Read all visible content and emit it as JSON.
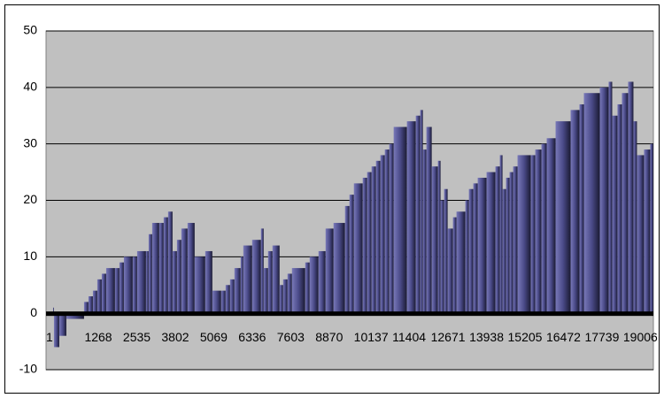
{
  "chart_data": {
    "type": "step-bar",
    "x": [
      1,
      233,
      262,
      437,
      670,
      1252,
      1398,
      1544,
      1689,
      1835,
      1981,
      2272,
      2418,
      2564,
      2855,
      3001,
      3292,
      3380,
      3496,
      3729,
      3874,
      4020,
      4166,
      4312,
      4457,
      4661,
      4894,
      5244,
      5477,
      5768,
      5914,
      6060,
      6205,
      6409,
      6497,
      6788,
      7079,
      7167,
      7312,
      7458,
      7691,
      7808,
      7953,
      8099,
      8536,
      8682,
      8973,
      9206,
      9468,
      9846,
      9992,
      10138,
      10429,
      10574,
      10720,
      10866,
      11011,
      11157,
      11303,
      11448,
      11885,
      12177,
      12322,
      12410,
      12526,
      12701,
      12905,
      12992,
      13109,
      13225,
      13400,
      13516,
      13808,
      13925,
      14070,
      14216,
      14507,
      14798,
      14944,
      15032,
      15148,
      15265,
      15381,
      15527,
      15964,
      16110,
      16314,
      16488,
      16780,
      17275,
      17566,
      17712,
      18236,
      18527,
      18644,
      18818,
      18964,
      19168,
      19343,
      19459,
      19692,
      19896
    ],
    "values": [
      0,
      1,
      -6,
      -4,
      -1,
      2,
      3,
      4,
      6,
      7,
      8,
      8,
      9,
      10,
      10,
      11,
      11,
      14,
      16,
      16,
      17,
      18,
      11,
      13,
      15,
      16,
      10,
      11,
      4,
      4,
      5,
      6,
      8,
      10,
      12,
      13,
      15,
      8,
      11,
      12,
      5,
      6,
      7,
      8,
      9,
      10,
      11,
      15,
      16,
      19,
      21,
      23,
      24,
      25,
      26,
      27,
      28,
      29,
      30,
      33,
      34,
      35,
      36,
      29,
      33,
      26,
      27,
      20,
      22,
      15,
      17,
      18,
      20,
      22,
      23,
      24,
      25,
      26,
      28,
      22,
      24,
      25,
      26,
      28,
      28,
      29,
      30,
      31,
      34,
      36,
      37,
      39,
      40,
      41,
      35,
      37,
      39,
      41,
      34,
      28,
      29,
      30
    ],
    "color": "#5a5a9c",
    "xlim": [
      1,
      20000
    ],
    "xticks": [
      1,
      1268,
      2535,
      3802,
      5069,
      6336,
      7603,
      8870,
      10137,
      11404,
      12671,
      13938,
      15205,
      16472,
      17739,
      19006
    ],
    "ylim": [
      -10,
      50
    ],
    "yticks": [
      -10,
      0,
      10,
      20,
      30,
      40,
      50
    ],
    "grid": true
  }
}
